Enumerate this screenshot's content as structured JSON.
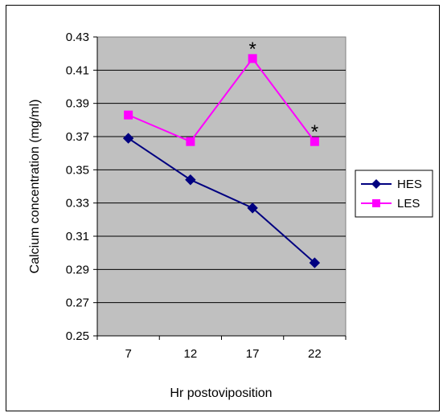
{
  "chart_data": {
    "type": "line",
    "title": "",
    "xlabel": "Hr postoviposition",
    "ylabel": "Calcium concentration (mg/ml)",
    "categories": [
      "7",
      "12",
      "17",
      "22"
    ],
    "ylim": [
      0.25,
      0.43
    ],
    "yticks": [
      "0.25",
      "0.27",
      "0.29",
      "0.31",
      "0.33",
      "0.35",
      "0.37",
      "0.39",
      "0.41",
      "0.43"
    ],
    "grid": true,
    "plot_background": "#c0c0c0",
    "legend_position": "right",
    "series": [
      {
        "name": "HES",
        "values": [
          0.369,
          0.344,
          0.327,
          0.294
        ],
        "color": "#000080",
        "marker": "diamond"
      },
      {
        "name": "LES",
        "values": [
          0.383,
          0.367,
          0.417,
          0.367
        ],
        "color": "#ff00ff",
        "marker": "square"
      }
    ],
    "annotations": [
      {
        "text": "*",
        "series": "LES",
        "category": "17"
      },
      {
        "text": "*",
        "series": "LES",
        "category": "22"
      }
    ]
  }
}
